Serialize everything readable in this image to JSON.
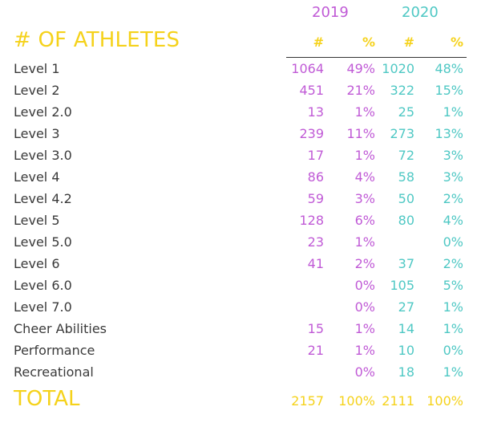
{
  "years": [
    "2019",
    "2020"
  ],
  "title": "# OF ATHLETES",
  "column_headers": [
    "#",
    "%",
    "#",
    "%"
  ],
  "rows": [
    {
      "label": "Level 1",
      "c2019": "1064",
      "p2019": "49%",
      "c2020": "1020",
      "p2020": "48%"
    },
    {
      "label": "Level 2",
      "c2019": "451",
      "p2019": "21%",
      "c2020": "322",
      "p2020": "15%"
    },
    {
      "label": "Level 2.0",
      "c2019": "13",
      "p2019": "1%",
      "c2020": "25",
      "p2020": "1%"
    },
    {
      "label": "Level 3",
      "c2019": "239",
      "p2019": "11%",
      "c2020": "273",
      "p2020": "13%"
    },
    {
      "label": "Level 3.0",
      "c2019": "17",
      "p2019": "1%",
      "c2020": "72",
      "p2020": "3%"
    },
    {
      "label": "Level 4",
      "c2019": "86",
      "p2019": "4%",
      "c2020": "58",
      "p2020": "3%"
    },
    {
      "label": "Level 4.2",
      "c2019": "59",
      "p2019": "3%",
      "c2020": "50",
      "p2020": "2%"
    },
    {
      "label": "Level 5",
      "c2019": "128",
      "p2019": "6%",
      "c2020": "80",
      "p2020": "4%"
    },
    {
      "label": "Level 5.0",
      "c2019": "23",
      "p2019": "1%",
      "c2020": "",
      "p2020": "0%"
    },
    {
      "label": "Level 6",
      "c2019": "41",
      "p2019": "2%",
      "c2020": "37",
      "p2020": "2%"
    },
    {
      "label": "Level 6.0",
      "c2019": "",
      "p2019": "0%",
      "c2020": "105",
      "p2020": "5%"
    },
    {
      "label": "Level 7.0",
      "c2019": "",
      "p2019": "0%",
      "c2020": "27",
      "p2020": "1%"
    },
    {
      "label": "Cheer Abilities",
      "c2019": "15",
      "p2019": "1%",
      "c2020": "14",
      "p2020": "1%"
    },
    {
      "label": "Performance",
      "c2019": "21",
      "p2019": "1%",
      "c2020": "10",
      "p2020": "0%"
    },
    {
      "label": "Recreational",
      "c2019": "",
      "p2019": "0%",
      "c2020": "18",
      "p2020": "1%"
    }
  ],
  "total": {
    "label": "TOTAL",
    "c2019": "2157",
    "p2019": "100%",
    "c2020": "2111",
    "p2020": "100%"
  },
  "colors": {
    "year_2019": "#c05ad6",
    "year_2020": "#4fc8c4",
    "accent": "#f5d21b",
    "label": "#3a3a3a"
  }
}
